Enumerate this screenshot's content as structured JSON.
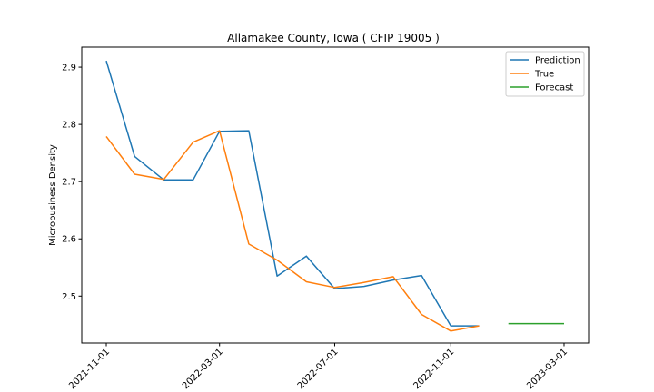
{
  "chart_data": {
    "type": "line",
    "title": "Allamakee County, Iowa ( CFIP 19005 )",
    "xlabel": "",
    "ylabel": "Microbusiness Density",
    "ylim": [
      2.418,
      2.935
    ],
    "xlim": [
      "2021-10-06",
      "2023-03-27"
    ],
    "y_ticks": [
      2.5,
      2.6,
      2.7,
      2.8,
      2.9
    ],
    "y_tick_labels": [
      "2.5",
      "2.6",
      "2.7",
      "2.8",
      "2.9"
    ],
    "x_ticks": [
      "2021-11-01",
      "2022-03-01",
      "2022-07-01",
      "2022-11-01",
      "2023-03-01"
    ],
    "x_tick_labels": [
      "2021-11-01",
      "2022-03-01",
      "2022-07-01",
      "2022-11-01",
      "2023-03-01"
    ],
    "legend_position": "top-right",
    "grid": false,
    "series": [
      {
        "name": "Prediction",
        "color": "#1f77b4",
        "x": [
          "2021-11-01",
          "2021-12-01",
          "2022-01-01",
          "2022-02-01",
          "2022-03-01",
          "2022-04-01",
          "2022-05-01",
          "2022-06-01",
          "2022-07-01",
          "2022-08-01",
          "2022-09-01",
          "2022-10-01",
          "2022-11-01",
          "2022-12-01"
        ],
        "y": [
          2.911,
          2.744,
          2.703,
          2.703,
          2.788,
          2.789,
          2.535,
          2.57,
          2.513,
          2.517,
          2.528,
          2.536,
          2.448,
          2.448
        ]
      },
      {
        "name": "True",
        "color": "#ff7f0e",
        "x": [
          "2021-11-01",
          "2021-12-01",
          "2022-01-01",
          "2022-02-01",
          "2022-03-01",
          "2022-04-01",
          "2022-05-01",
          "2022-06-01",
          "2022-07-01",
          "2022-08-01",
          "2022-09-01",
          "2022-10-01",
          "2022-11-01",
          "2022-12-01"
        ],
        "y": [
          2.779,
          2.713,
          2.704,
          2.769,
          2.789,
          2.591,
          2.563,
          2.525,
          2.515,
          2.524,
          2.534,
          2.468,
          2.439,
          2.448
        ]
      },
      {
        "name": "Forecast",
        "color": "#2ca02c",
        "x": [
          "2023-01-01",
          "2023-03-01"
        ],
        "y": [
          2.452,
          2.452
        ]
      }
    ]
  }
}
